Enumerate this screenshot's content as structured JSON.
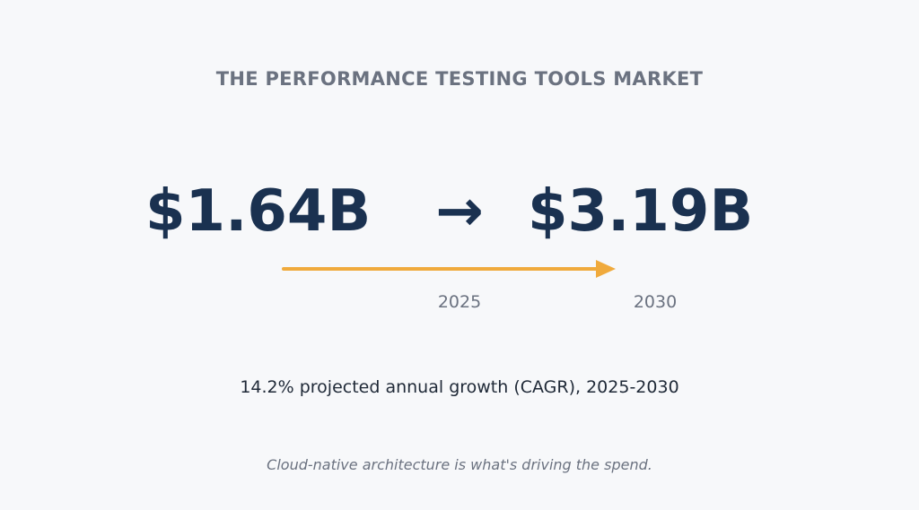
{
  "title": "THE PERFORMANCE TESTING TOOLS MARKET",
  "market": {
    "start_value": "$1.64B",
    "arrow_glyph": "→",
    "end_value": "$3.19B",
    "start_year": "2025",
    "end_year": "2030"
  },
  "cagr_text": "14.2% projected annual growth (CAGR), 2025-2030",
  "note": "Cloud-native architecture is what's driving the spend.",
  "colors": {
    "background": "#f7f8fa",
    "value_text": "#1a3150",
    "arrow_accent": "#f0aa3c",
    "muted_text": "#6b7280"
  },
  "icons": {
    "growth_arrow": "right-arrow-icon"
  }
}
